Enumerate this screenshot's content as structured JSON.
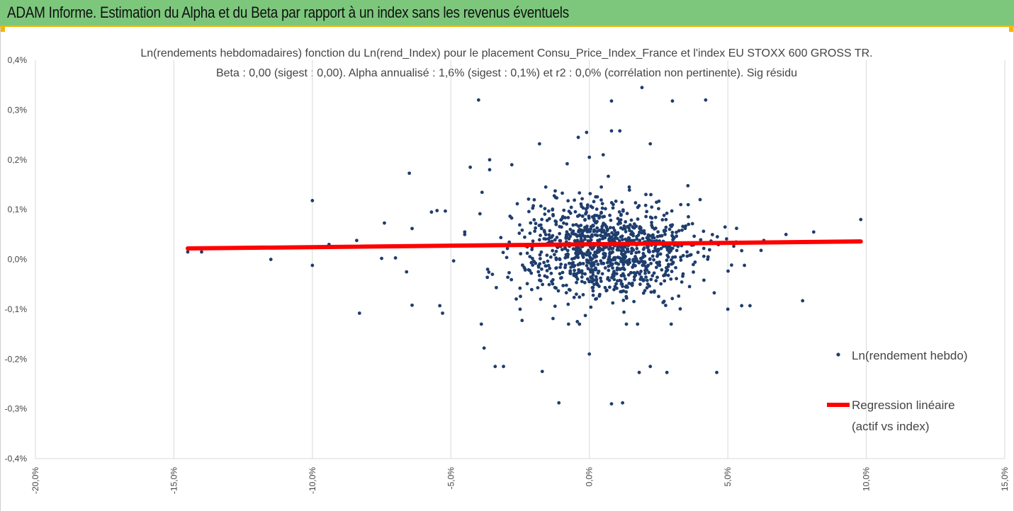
{
  "banner": {
    "title": "ADAM Informe. Estimation du Alpha et du Beta par rapport à un index sans les revenus éventuels",
    "color": "#7dc77d",
    "accent": "#f2b705"
  },
  "chart_data": {
    "type": "scatter",
    "title_line1": "Ln(rendements hebdomadaires) fonction du Ln(rend_Index) pour le placement Consu_Price_Index_France et l'index EU STOXX 600 GROSS TR.",
    "title_line2": "Beta : 0,00 (sigest : 0,00). Alpha annualisé : 1,6% (sigest : 0,1%) et r2 : 0,0% (corrélation non pertinente). Sig résidu",
    "xlim": [
      -20,
      15
    ],
    "ylim": [
      -0.4,
      0.4
    ],
    "x_ticks": [
      "-20,0%",
      "-15,0%",
      "-10,0%",
      "-5,0%",
      "0,0%",
      "5,0%",
      "10,0%",
      "15,0%"
    ],
    "y_ticks": [
      "0,4%",
      "0,3%",
      "0,2%",
      "0,1%",
      "0,0%",
      "-0,1%",
      "-0,2%",
      "-0,3%",
      "-0,4%"
    ],
    "grid": "vertical",
    "legend_position": "right",
    "series": [
      {
        "name": "Ln(rendement hebdo)",
        "color": "#1f3d6d",
        "points": [
          [
            -14.5,
            0.015
          ],
          [
            -14.0,
            0.015
          ],
          [
            -11.5,
            0.0
          ],
          [
            -10.0,
            0.118
          ],
          [
            -10.0,
            -0.012
          ],
          [
            -9.4,
            0.03
          ],
          [
            -8.4,
            0.038
          ],
          [
            -8.3,
            -0.108
          ],
          [
            -7.5,
            0.002
          ],
          [
            -7.4,
            0.073
          ],
          [
            -7.0,
            0.003
          ],
          [
            -6.6,
            -0.025
          ],
          [
            -6.5,
            0.173
          ],
          [
            -6.4,
            0.062
          ],
          [
            -6.4,
            -0.092
          ],
          [
            -5.7,
            0.095
          ],
          [
            -5.5,
            0.098
          ],
          [
            -5.4,
            -0.093
          ],
          [
            -5.3,
            -0.108
          ],
          [
            -5.2,
            0.097
          ],
          [
            -4.9,
            -0.003
          ],
          [
            -4.5,
            0.05
          ],
          [
            -4.3,
            0.185
          ],
          [
            -4.0,
            0.32
          ],
          [
            -3.9,
            -0.13
          ],
          [
            -3.8,
            -0.178
          ],
          [
            -3.6,
            0.18
          ],
          [
            -3.6,
            0.2
          ],
          [
            -3.5,
            -0.03
          ],
          [
            -3.4,
            -0.215
          ],
          [
            -3.1,
            -0.215
          ],
          [
            -2.8,
            0.19
          ],
          [
            -2.5,
            -0.1
          ],
          [
            -1.8,
            0.232
          ],
          [
            -1.7,
            -0.225
          ],
          [
            -1.2,
            0.07
          ],
          [
            -1.1,
            -0.288
          ],
          [
            -0.8,
            0.192
          ],
          [
            -0.4,
            0.245
          ],
          [
            -0.1,
            0.255
          ],
          [
            0.0,
            0.205
          ],
          [
            0.0,
            -0.19
          ],
          [
            0.5,
            0.21
          ],
          [
            0.8,
            0.258
          ],
          [
            0.8,
            0.318
          ],
          [
            0.8,
            -0.29
          ],
          [
            1.1,
            0.258
          ],
          [
            1.2,
            -0.288
          ],
          [
            1.8,
            -0.227
          ],
          [
            1.9,
            0.345
          ],
          [
            2.2,
            0.232
          ],
          [
            2.2,
            -0.215
          ],
          [
            2.8,
            -0.227
          ],
          [
            3.0,
            0.318
          ],
          [
            3.3,
            0.11
          ],
          [
            4.0,
            0.12
          ],
          [
            4.2,
            0.32
          ],
          [
            4.6,
            -0.227
          ],
          [
            4.9,
            0.065
          ],
          [
            5.0,
            -0.1
          ],
          [
            5.3,
            0.035
          ],
          [
            5.5,
            -0.093
          ],
          [
            5.6,
            -0.012
          ],
          [
            5.8,
            -0.093
          ],
          [
            6.2,
            0.018
          ],
          [
            6.3,
            0.038
          ],
          [
            7.1,
            0.05
          ],
          [
            7.7,
            -0.083
          ],
          [
            8.1,
            0.055
          ],
          [
            9.8,
            0.08
          ]
        ],
        "cluster": {
          "x_center": 0.6,
          "x_spread": 1.6,
          "y_center": 0.02,
          "y_spread": 0.05,
          "count": 1050
        }
      },
      {
        "name": "Regression linéaire (actif vs index)",
        "color": "#ff0000",
        "line": [
          [
            -14.5,
            0.022
          ],
          [
            9.8,
            0.036
          ]
        ]
      }
    ],
    "legend": {
      "scatter_label": "Ln(rendement hebdo)",
      "line_label_1": "Regression linéaire",
      "line_label_2": "(actif vs index)"
    }
  }
}
